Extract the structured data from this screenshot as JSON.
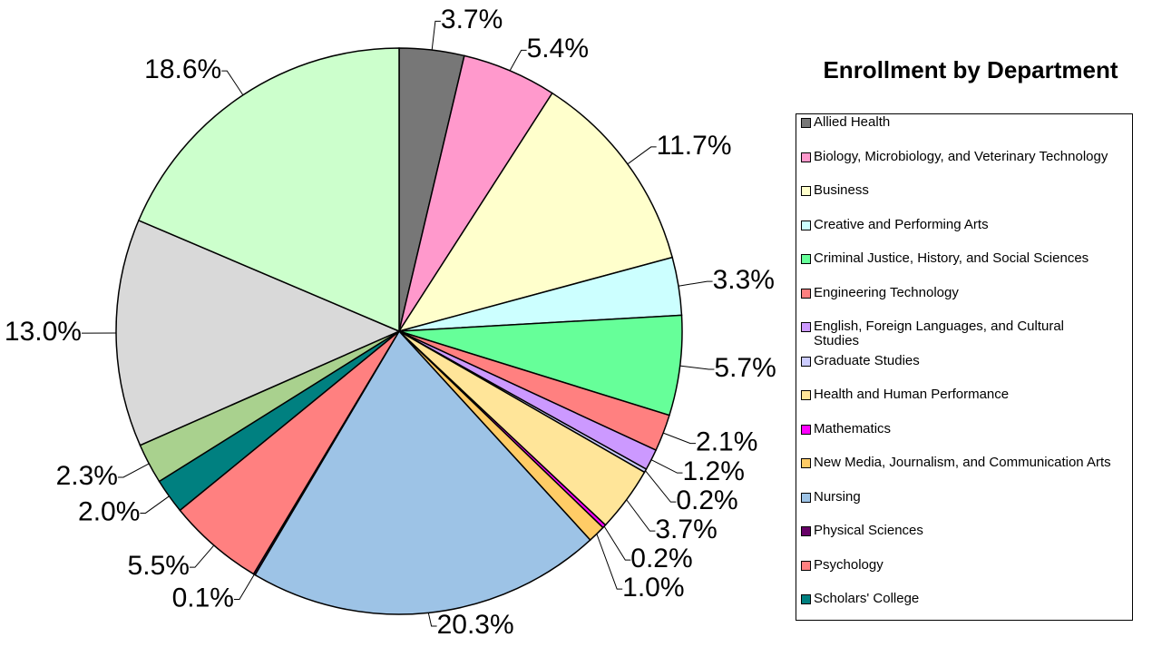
{
  "chart_data": {
    "type": "pie",
    "title": "Enrollment by Department",
    "categories": [
      "Allied Health",
      "Biology, Microbiology, and Veterinary Technology",
      "Business",
      "Creative and Performing Arts",
      "Criminal Justice, History, and Social Sciences",
      "Engineering Technology",
      "English, Foreign Languages, and Cultural Studies",
      "Graduate Studies",
      "Health and Human Performance",
      "Mathematics",
      "New Media, Journalism, and Communication Arts",
      "Nursing",
      "Physical Sciences",
      "Psychology",
      "Scholars' College",
      null,
      null,
      null
    ],
    "values": [
      3.7,
      5.4,
      11.7,
      3.3,
      5.7,
      2.1,
      1.2,
      0.2,
      3.7,
      0.2,
      1.0,
      20.3,
      0.1,
      5.5,
      2.0,
      2.3,
      13.0,
      18.6
    ],
    "value_labels": [
      "3.7%",
      "5.4%",
      "11.7%",
      "3.3%",
      "5.7%",
      "2.1%",
      "1.2%",
      "0.2%",
      "3.7%",
      "0.2%",
      "1.0%",
      "20.3%",
      "0.1%",
      "5.5%",
      "2.0%",
      "2.3%",
      "13.0%",
      "18.6%"
    ],
    "colors": [
      "#777777",
      "#ff99cc",
      "#ffffcc",
      "#ccffff",
      "#66ff99",
      "#ff8080",
      "#cc99ff",
      "#ccccff",
      "#ffe599",
      "#ff00ff",
      "#ffcc66",
      "#9dc3e6",
      "#660066",
      "#ff8080",
      "#008080",
      "#a9d18e",
      "#d9d9d9",
      "#ccffcc"
    ],
    "legend": "right"
  }
}
